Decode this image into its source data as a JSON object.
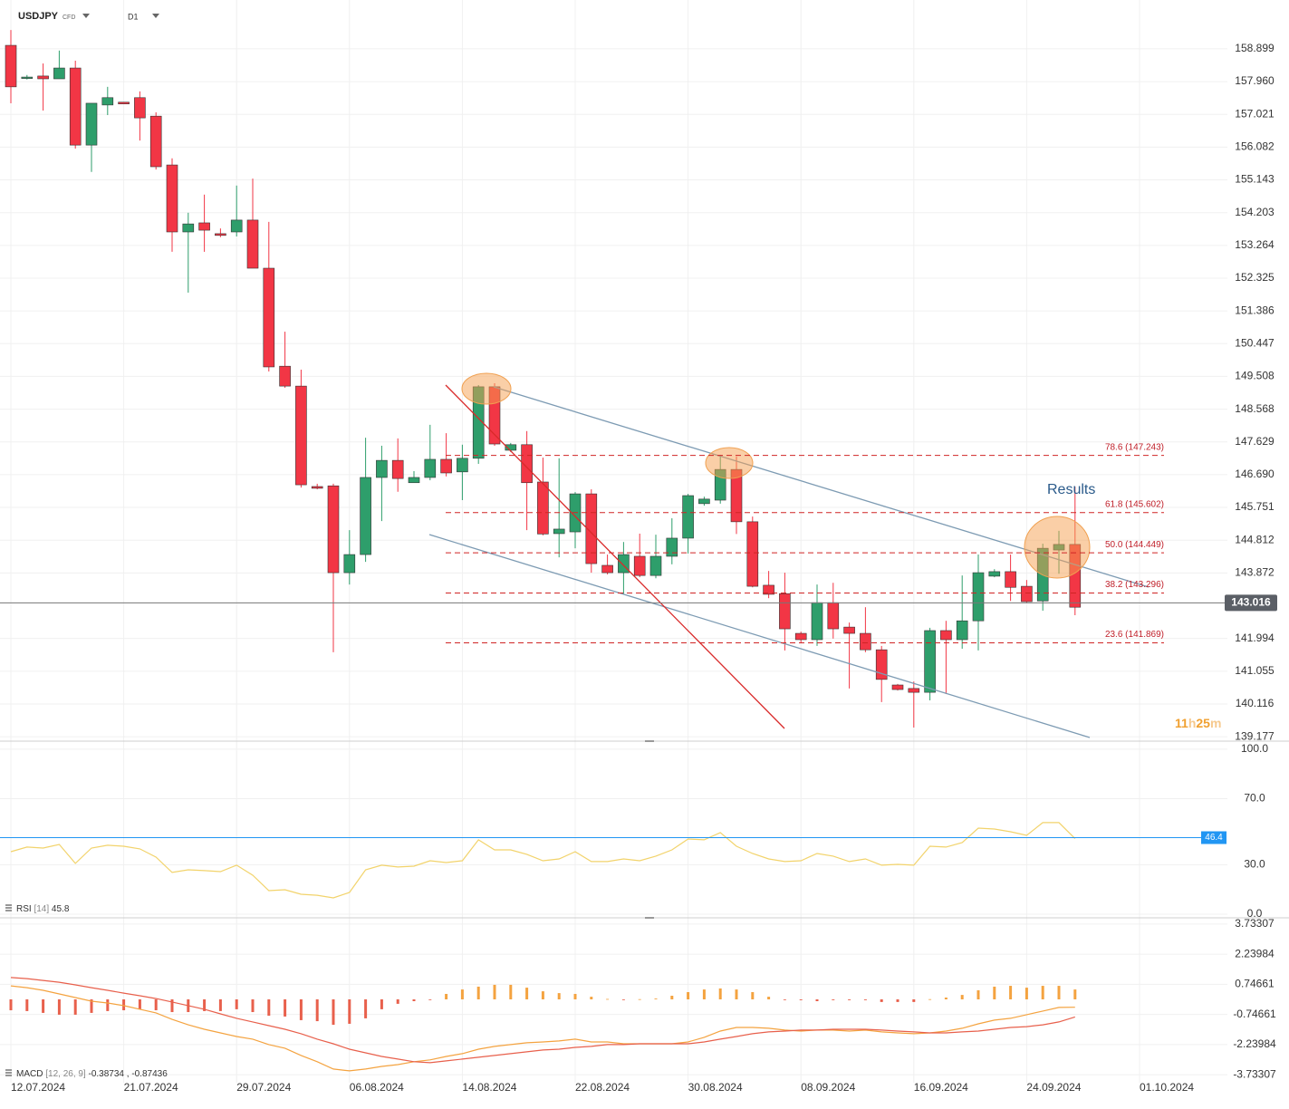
{
  "chart_data": [
    {
      "type": "candlestick",
      "symbol": "USDJPY",
      "market": "CFD",
      "timeframe": "D1",
      "categories": [
        "12.07.2024",
        null,
        null,
        null,
        null,
        null,
        null,
        "21.07.2024",
        null,
        null,
        null,
        null,
        null,
        null,
        "29.07.2024",
        null,
        null,
        null,
        null,
        null,
        null,
        "06.08.2024",
        null,
        null,
        null,
        null,
        null,
        null,
        "14.08.2024",
        null,
        null,
        null,
        null,
        null,
        null,
        "22.08.2024",
        null,
        null,
        null,
        null,
        null,
        null,
        "30.08.2024",
        null,
        null,
        null,
        null,
        null,
        null,
        "08.09.2024",
        null,
        null,
        null,
        null,
        null,
        null,
        "16.09.2024",
        null,
        null,
        null,
        null,
        null,
        null,
        "24.09.2024",
        null,
        null,
        null,
        null,
        null,
        null,
        "01.10.2024"
      ],
      "open": [
        159.0,
        158.05,
        158.12,
        158.04,
        158.35,
        156.14,
        157.29,
        157.37,
        157.5,
        156.97,
        155.57,
        153.65,
        153.91,
        153.6,
        153.65,
        153.99,
        152.61,
        149.8,
        149.23,
        146.35,
        146.37,
        143.88,
        144.4,
        146.61,
        147.1,
        146.46,
        146.61,
        147.13,
        146.77,
        147.16,
        149.21,
        147.39,
        147.55,
        146.48,
        145.0,
        145.05,
        146.14,
        144.09,
        143.88,
        144.35,
        143.8,
        144.35,
        144.87,
        145.86,
        145.96,
        146.84,
        145.34,
        143.52,
        143.28,
        142.14,
        141.96,
        143.02,
        142.32,
        142.14,
        141.67,
        140.66,
        140.56,
        140.45,
        142.22,
        141.96,
        142.5,
        143.78,
        143.91,
        143.49,
        143.07,
        144.53,
        144.69,
        null,
        null,
        null,
        null
      ],
      "high": [
        159.44,
        158.15,
        158.48,
        158.85,
        158.56,
        157.34,
        157.81,
        157.37,
        157.68,
        157.08,
        155.76,
        154.2,
        154.72,
        153.75,
        154.98,
        155.18,
        153.94,
        150.79,
        149.7,
        146.43,
        146.43,
        145.1,
        147.75,
        147.52,
        147.73,
        146.79,
        148.12,
        147.88,
        147.55,
        149.26,
        149.31,
        147.6,
        147.94,
        147.18,
        147.16,
        146.19,
        146.27,
        144.4,
        144.76,
        145.0,
        144.97,
        145.44,
        146.14,
        146.06,
        147.26,
        147.21,
        145.49,
        143.93,
        143.88,
        142.19,
        143.54,
        143.59,
        142.45,
        142.89,
        141.78,
        140.69,
        140.76,
        142.3,
        142.5,
        143.8,
        144.4,
        143.98,
        144.4,
        143.67,
        144.71,
        145.08,
        146.35,
        null,
        null,
        null,
        null
      ],
      "low": [
        157.34,
        158.02,
        157.13,
        158.04,
        156.04,
        155.37,
        157.0,
        157.32,
        156.27,
        155.44,
        153.08,
        151.91,
        153.08,
        153.5,
        153.52,
        152.61,
        149.65,
        149.18,
        146.32,
        146.27,
        141.6,
        143.54,
        144.19,
        145.36,
        146.2,
        146.46,
        146.53,
        146.64,
        145.96,
        147.0,
        147.52,
        147.34,
        145.1,
        144.95,
        144.32,
        144.58,
        143.88,
        143.83,
        143.26,
        143.75,
        143.72,
        144.12,
        144.43,
        145.8,
        145.86,
        144.99,
        143.46,
        143.15,
        141.65,
        141.86,
        141.78,
        141.99,
        140.56,
        141.6,
        140.17,
        140.5,
        139.44,
        140.22,
        140.4,
        141.7,
        141.65,
        143.75,
        143.07,
        143.02,
        142.79,
        143.85,
        142.66,
        null,
        null,
        null,
        null
      ],
      "close": [
        157.81,
        158.09,
        158.04,
        158.35,
        156.14,
        157.34,
        157.5,
        157.32,
        156.92,
        155.52,
        153.65,
        153.88,
        153.7,
        153.55,
        153.99,
        152.61,
        149.78,
        149.23,
        146.4,
        146.3,
        143.88,
        144.4,
        146.61,
        147.1,
        146.58,
        146.61,
        147.13,
        146.74,
        147.16,
        149.21,
        147.57,
        147.55,
        146.46,
        144.99,
        145.13,
        146.14,
        144.14,
        143.88,
        144.4,
        143.8,
        144.35,
        144.87,
        146.09,
        145.99,
        146.84,
        145.34,
        143.49,
        143.26,
        142.27,
        141.96,
        143.02,
        142.27,
        142.14,
        141.67,
        140.82,
        140.53,
        140.45,
        142.22,
        141.96,
        142.5,
        143.88,
        143.91,
        143.46,
        143.05,
        144.58,
        144.69,
        142.89,
        null,
        null,
        null,
        null
      ],
      "up_color": "#2e9e6b",
      "down_color": "#f23645",
      "ylim": [
        139.05,
        160.3
      ],
      "yticks": [
        {
          "value": 158.899,
          "label": "158.899"
        },
        {
          "value": 157.96,
          "label": "157.960"
        },
        157.021,
        156.082,
        155.143,
        154.203,
        153.264,
        152.325,
        151.386,
        150.447,
        149.508,
        148.568,
        147.629,
        {
          "value": 146.69,
          "label": "146.690"
        },
        145.751,
        144.812,
        143.872,
        141.994,
        141.055,
        140.116,
        139.177
      ],
      "grid": true,
      "last_price": 143.016,
      "fib_levels": [
        {
          "value": 147.243,
          "label": "78.6 (147.243)"
        },
        {
          "value": 145.602,
          "label": "61.8 (145.602)"
        },
        {
          "value": 144.449,
          "label": "50.0 (144.449)"
        },
        {
          "value": 143.296,
          "label": "38.2 (143.296)"
        },
        {
          "value": 141.869,
          "label": "23.6 (141.869)"
        }
      ],
      "annotation": "Results",
      "countdown": [
        "11",
        "h",
        "25",
        "m"
      ]
    },
    {
      "type": "line",
      "name": "RSI",
      "params": "[14]",
      "current": 45.8,
      "color": "#f2d36b",
      "values": [
        37.9,
        40.7,
        40.1,
        42.3,
        30.8,
        40.1,
        41.8,
        41.2,
        39.6,
        34.6,
        25.3,
        26.9,
        26.4,
        25.8,
        29.7,
        23.6,
        14.3,
        14.8,
        12.1,
        11.5,
        9.9,
        13.2,
        26.9,
        29.7,
        28.6,
        29.1,
        32.4,
        31.3,
        32.4,
        45.1,
        39.0,
        39.0,
        36.3,
        32.4,
        33.5,
        37.9,
        31.9,
        31.9,
        33.5,
        32.4,
        35.2,
        39.0,
        45.6,
        45.1,
        49.5,
        41.2,
        36.8,
        33.5,
        31.9,
        32.4,
        36.8,
        35.2,
        31.9,
        33.5,
        29.7,
        30.2,
        29.7,
        41.2,
        40.7,
        43.4,
        52.2,
        51.6,
        50.0,
        47.8,
        55.5,
        55.5,
        45.8,
        null,
        null,
        null,
        null
      ],
      "marker_value": 46.4,
      "marker_color": "#2196f3",
      "ylim": [
        -2.2,
        104.9
      ],
      "yticks": [
        {
          "value": 100,
          "label": "100.0"
        },
        {
          "value": 70,
          "label": "70.0"
        },
        {
          "value": 30,
          "label": "30.0"
        },
        {
          "value": 0,
          "label": "0.0"
        }
      ]
    },
    {
      "type": "macd",
      "name": "MACD",
      "params": "[12, 26, 9]",
      "current": [
        -0.38734,
        -0.87436
      ],
      "separator": ",",
      "histogram": [
        -0.54,
        -0.58,
        -0.67,
        -0.76,
        -0.76,
        -0.67,
        -0.58,
        -0.54,
        -0.49,
        -0.54,
        -0.63,
        -0.63,
        -0.58,
        -0.58,
        -0.49,
        -0.63,
        -0.81,
        -0.85,
        -1.03,
        -1.08,
        -1.26,
        -1.21,
        -0.94,
        -0.49,
        -0.22,
        -0.09,
        -0.02,
        0.27,
        0.49,
        0.63,
        0.72,
        0.72,
        0.58,
        0.4,
        0.31,
        0.27,
        0.13,
        0.02,
        -0.02,
        0.01,
        0.04,
        0.18,
        0.36,
        0.49,
        0.54,
        0.49,
        0.36,
        0.13,
        -0.03,
        -0.04,
        -0.09,
        -0.04,
        -0.04,
        -0.04,
        -0.13,
        -0.13,
        -0.13,
        0.01,
        0.09,
        0.22,
        0.45,
        0.63,
        0.67,
        0.58,
        0.67,
        0.67,
        0.49,
        null,
        null,
        null,
        null
      ],
      "positive_color": "#f4a340",
      "negative_color": "#e8604c",
      "series": [
        {
          "color": "#f4a340",
          "values": [
            0.67,
            0.58,
            0.45,
            0.27,
            0.09,
            -0.09,
            -0.18,
            -0.31,
            -0.49,
            -0.67,
            -0.99,
            -1.26,
            -1.48,
            -1.66,
            -1.84,
            -1.97,
            -2.24,
            -2.42,
            -2.78,
            -3.09,
            -3.45,
            -3.54,
            -3.45,
            -3.32,
            -3.23,
            -3.09,
            -3.0,
            -2.83,
            -2.69,
            -2.47,
            -2.33,
            -2.24,
            -2.15,
            -2.11,
            -2.06,
            -1.97,
            -2.11,
            -2.11,
            -2.2,
            -2.2,
            -2.2,
            -2.2,
            -2.11,
            -1.88,
            -1.57,
            -1.39,
            -1.39,
            -1.43,
            -1.52,
            -1.57,
            -1.52,
            -1.52,
            -1.57,
            -1.52,
            -1.61,
            -1.66,
            -1.7,
            -1.66,
            -1.57,
            -1.43,
            -1.21,
            -1.03,
            -0.94,
            -0.76,
            -0.58,
            -0.4,
            -0.39,
            null,
            null,
            null,
            null
          ]
        },
        {
          "color": "#e8604c",
          "values": [
            1.08,
            1.03,
            0.94,
            0.85,
            0.72,
            0.58,
            0.45,
            0.31,
            0.18,
            0.04,
            -0.13,
            -0.31,
            -0.49,
            -0.72,
            -0.94,
            -1.12,
            -1.3,
            -1.48,
            -1.7,
            -1.97,
            -2.2,
            -2.47,
            -2.65,
            -2.83,
            -2.96,
            -3.09,
            -3.14,
            -3.05,
            -2.96,
            -2.87,
            -2.78,
            -2.69,
            -2.6,
            -2.51,
            -2.47,
            -2.38,
            -2.33,
            -2.24,
            -2.24,
            -2.2,
            -2.2,
            -2.2,
            -2.2,
            -2.11,
            -1.97,
            -1.84,
            -1.7,
            -1.61,
            -1.57,
            -1.52,
            -1.52,
            -1.48,
            -1.48,
            -1.48,
            -1.52,
            -1.57,
            -1.61,
            -1.66,
            -1.66,
            -1.61,
            -1.57,
            -1.48,
            -1.39,
            -1.35,
            -1.26,
            -1.12,
            -0.87,
            null,
            null,
            null,
            null
          ]
        }
      ],
      "ylim": [
        -4.13,
        4.04
      ],
      "yticks": [
        3.73307,
        2.23984,
        0.74661,
        -0.74661,
        -2.23984,
        -3.73307
      ]
    }
  ]
}
